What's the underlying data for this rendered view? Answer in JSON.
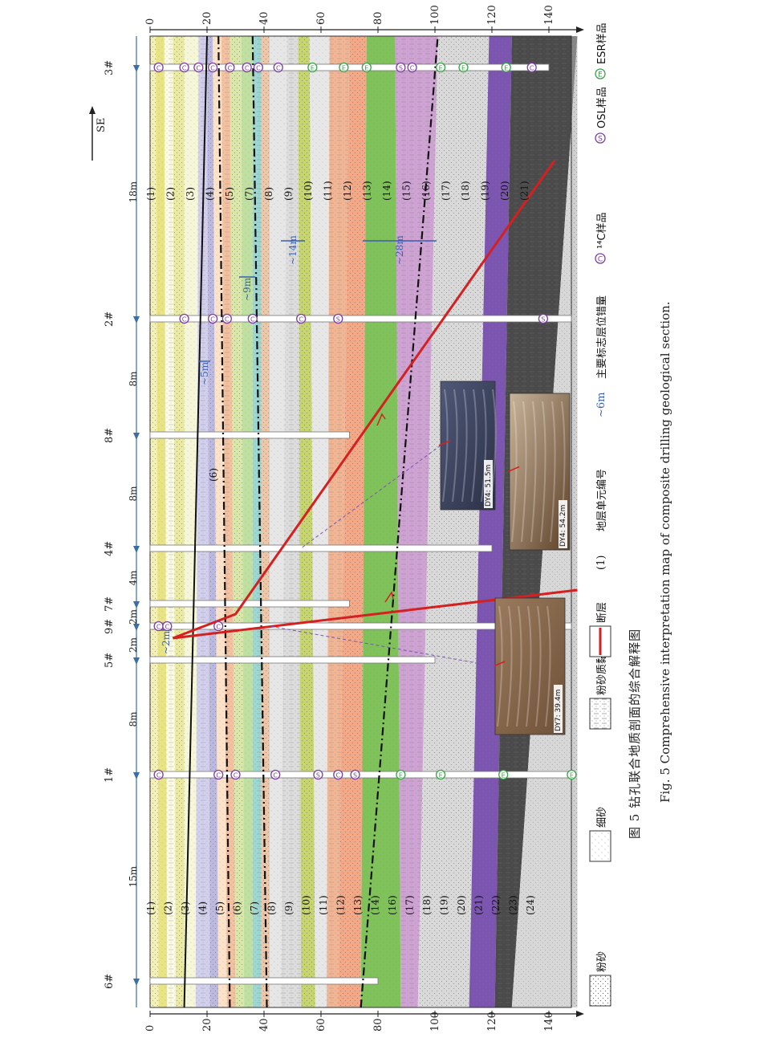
{
  "caption": {
    "cn": "图 5   钻孔联合地质剖面的综合解释图",
    "en": "Fig. 5   Comprehensive interpretation map of composite drilling geological section."
  },
  "depth_axis": {
    "ticks": [
      "0",
      "20",
      "40",
      "60",
      "80",
      "100",
      "120",
      "140"
    ],
    "max": 148
  },
  "direction_label": "SE",
  "boreholes": [
    {
      "name": "6#",
      "depth": 80
    },
    {
      "name": "1#",
      "depth": 150
    },
    {
      "name": "5#",
      "depth": 100
    },
    {
      "name": "9#",
      "depth": 150
    },
    {
      "name": "7#",
      "depth": 70
    },
    {
      "name": "4#",
      "depth": 120
    },
    {
      "name": "8#",
      "depth": 70
    },
    {
      "name": "2#",
      "depth": 150
    },
    {
      "name": "3#",
      "depth": 140
    }
  ],
  "spacings": [
    "15m",
    "8m",
    "2m",
    "2m",
    "4m",
    "8m",
    "8m",
    "18m"
  ],
  "left_units": [
    "(1)",
    "(2)",
    "(3)",
    "(4)",
    "(5)",
    "(6)",
    "(7)",
    "(8)",
    "(9)",
    "(10)",
    "(11)",
    "(12)",
    "(13)",
    "(14)",
    "(16)",
    "(17)",
    "(18)",
    "(19)",
    "(20)",
    "(21)",
    "(22)",
    "(23)",
    "(24)"
  ],
  "right_units": [
    "(1)",
    "(2)",
    "(3)",
    "(4)",
    "(5)",
    "(7)",
    "(8)",
    "(9)",
    "(10)",
    "(11)",
    "(12)",
    "(13)",
    "(14)",
    "(15)",
    "(16)",
    "(17)",
    "(18)",
    "(19)",
    "(20)",
    "(21)"
  ],
  "mid_unit": "(6)",
  "offsets": [
    "~2m",
    "~5m",
    "~9m",
    "~14m",
    "~28m"
  ],
  "photos": [
    {
      "label": "DY7: 39.4m"
    },
    {
      "label": "DY4: 54.2m"
    },
    {
      "label": "DY4: 51.5m"
    }
  ],
  "sample_symbols": {
    "c14": "C",
    "osl": "S",
    "esr": "E"
  },
  "legend": [
    {
      "key": "silt",
      "label": "粉砂"
    },
    {
      "key": "fine-sand",
      "label": "细砂"
    },
    {
      "key": "silty-clay",
      "label": "粉砂质黏土"
    },
    {
      "key": "fault",
      "label": "断层"
    },
    {
      "key": "unit-number",
      "symbol": "(1)",
      "label": "地层单元编号"
    },
    {
      "key": "marker-offset",
      "symbol": "~6m",
      "label": "主要标志层位错量"
    },
    {
      "key": "c14",
      "label": "¹⁴C样品"
    },
    {
      "key": "osl",
      "label": "OSL样品"
    },
    {
      "key": "esr",
      "label": "ESR样品"
    }
  ],
  "colors": {
    "c14_sample": "#7b3fa0",
    "osl_sample": "#7b3fa0",
    "esr_sample": "#3aa24a",
    "fault": "#d42020",
    "axis_arrow": "#3a6ea8",
    "offset_line": "#3a5fb0"
  }
}
